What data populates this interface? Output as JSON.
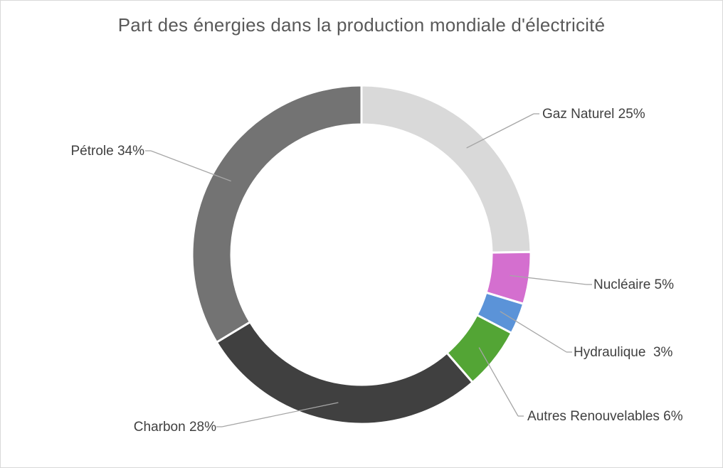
{
  "chart_data": {
    "type": "pie",
    "subtype": "doughnut",
    "title": "Part des énergies dans la production mondiale d'électricité",
    "legend": "none",
    "slices": [
      {
        "name": "Gaz Naturel",
        "value": 25,
        "label": "Gaz Naturel 25%",
        "color": "#d9d9d9"
      },
      {
        "name": "Nucléaire",
        "value": 5,
        "label": "Nucléaire 5%",
        "color": "#d46fcf"
      },
      {
        "name": "Hydraulique",
        "value": 3,
        "label": "Hydraulique  3%",
        "color": "#5b93d8"
      },
      {
        "name": "Autres Renouvelables",
        "value": 6,
        "label": "Autres Renouvelables 6%",
        "color": "#53a535"
      },
      {
        "name": "Charbon",
        "value": 28,
        "label": "Charbon 28%",
        "color": "#404040"
      },
      {
        "name": "Pétrole",
        "value": 34,
        "label": "Pétrole 34%",
        "color": "#737373"
      }
    ]
  }
}
